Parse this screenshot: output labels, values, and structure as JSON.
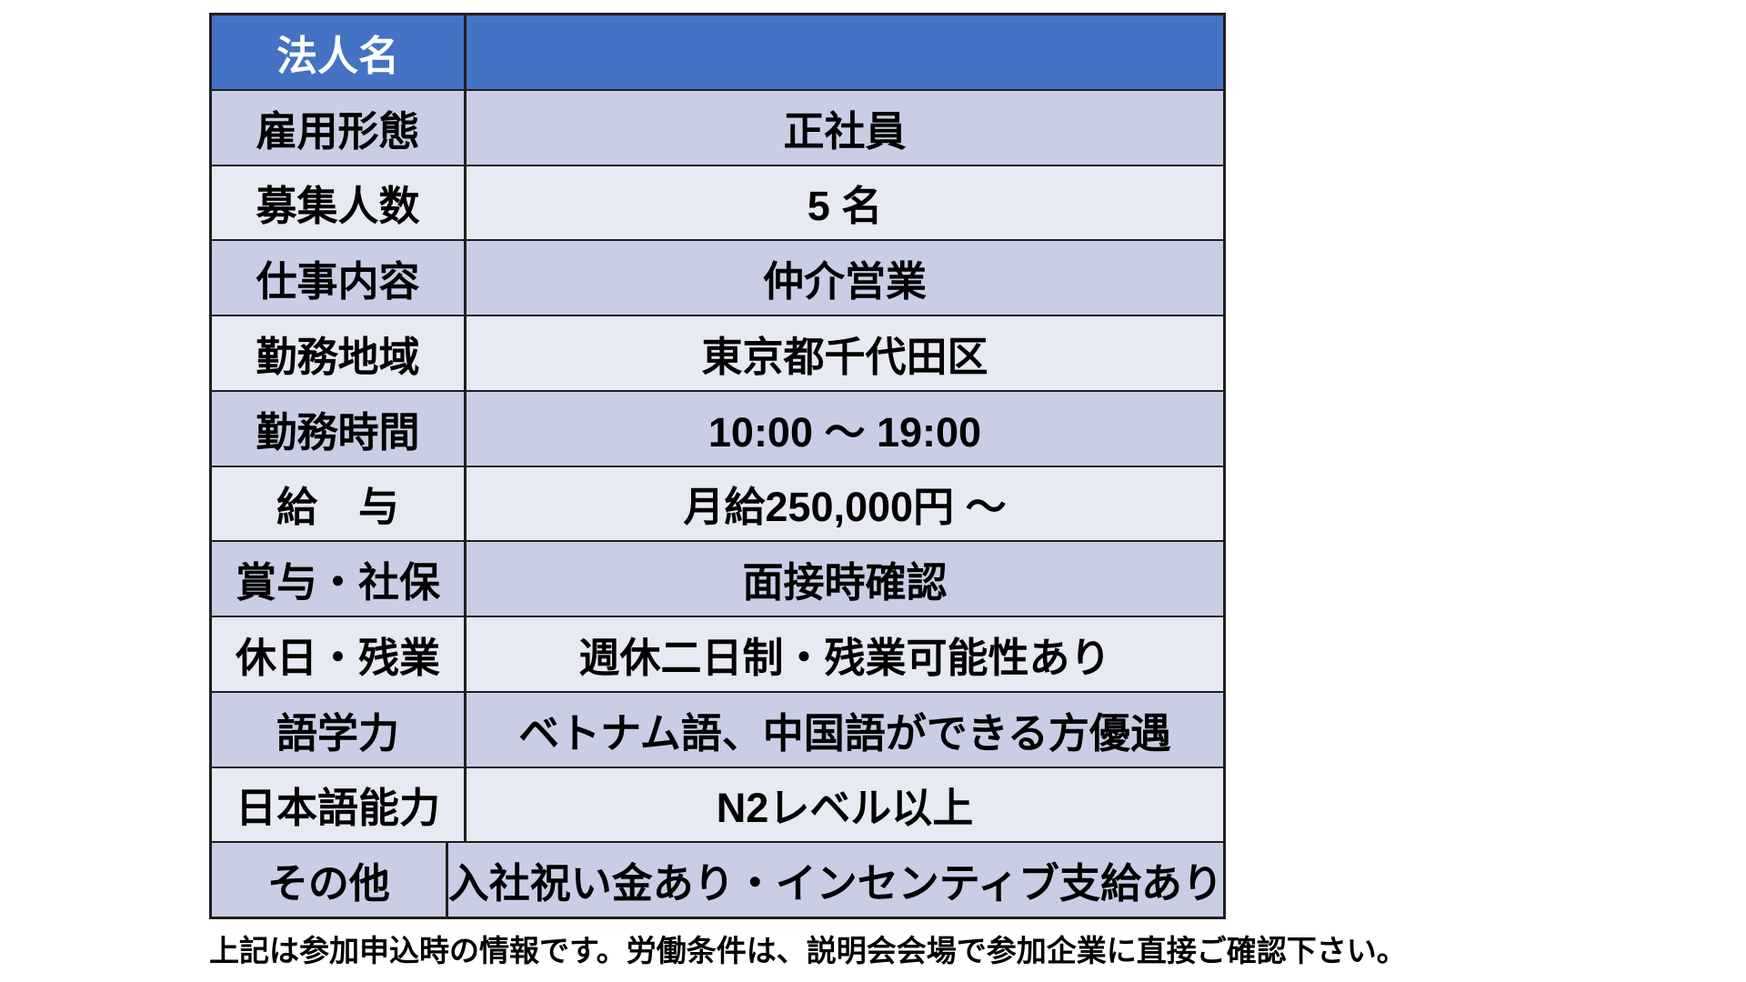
{
  "table": {
    "header": {
      "label": "法人名",
      "value": ""
    },
    "rows": [
      {
        "label": "雇用形態",
        "value": "正社員"
      },
      {
        "label": "募集人数",
        "value": "5 名"
      },
      {
        "label": "仕事内容",
        "value": "仲介営業"
      },
      {
        "label": "勤務地域",
        "value": "東京都千代田区"
      },
      {
        "label": "勤務時間",
        "value": "10:00 ～ 19:00"
      },
      {
        "label": "給　与",
        "value": "月給250,000円 ～"
      },
      {
        "label": "賞与・社保",
        "value": "面接時確認"
      },
      {
        "label": "休日・残業",
        "value": "週休二日制・残業可能性あり"
      },
      {
        "label": "語学力",
        "value": "ベトナム語、中国語ができる方優遇"
      },
      {
        "label": "日本語能力",
        "value": "N2レベル以上"
      },
      {
        "label": "その他",
        "value": "入社祝い金あり・インセンティブ支給あり"
      }
    ],
    "footer_note": "上記は参加申込時の情報です。労働条件は、説明会会場で参加企業に直接ご確認下さい。"
  },
  "colors": {
    "header_bg": "#4472C4",
    "header_text": "#FFFFFF",
    "row_dark": "#C9CEE4",
    "row_light": "#E7E9F3",
    "border": "#1F1F1F",
    "text": "#000000"
  }
}
